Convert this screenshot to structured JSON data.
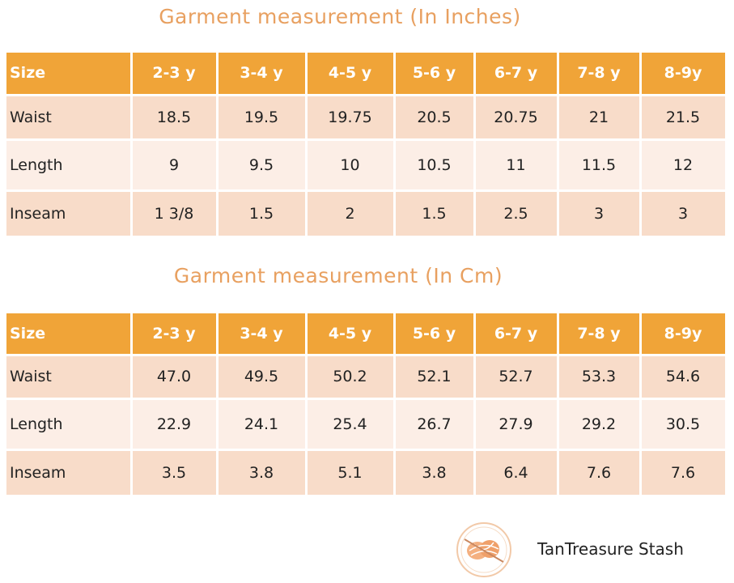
{
  "tables": [
    {
      "title": "Garment measurement (In Inches)",
      "header": [
        "Size",
        "2-3 y",
        "3-4 y",
        "4-5 y",
        "5-6 y",
        "6-7 y",
        "7-8 y",
        "8-9y"
      ],
      "rows": [
        [
          "Waist",
          "18.5",
          "19.5",
          "19.75",
          "20.5",
          "20.75",
          "21",
          "21.5"
        ],
        [
          "Length",
          "9",
          "9.5",
          "10",
          "10.5",
          "11",
          "11.5",
          "12"
        ],
        [
          "Inseam",
          "1 3/8",
          "1.5",
          "2",
          "1.5",
          "2.5",
          "3",
          "3"
        ]
      ]
    },
    {
      "title": "Garment measurement (In Cm)",
      "header": [
        "Size",
        "2-3 y",
        "3-4 y",
        "4-5 y",
        "5-6 y",
        "6-7 y",
        "7-8 y",
        "8-9y"
      ],
      "rows": [
        [
          "Waist",
          "47.0",
          "49.5",
          "50.2",
          "52.1",
          "52.7",
          "53.3",
          "54.6"
        ],
        [
          "Length",
          "22.9",
          "24.1",
          "25.4",
          "26.7",
          "27.9",
          "29.2",
          "30.5"
        ],
        [
          "Inseam",
          "3.5",
          "3.8",
          "5.1",
          "3.8",
          "6.4",
          "7.6",
          "7.6"
        ]
      ]
    }
  ],
  "logo": {
    "text": "TanTreasure Stash"
  }
}
